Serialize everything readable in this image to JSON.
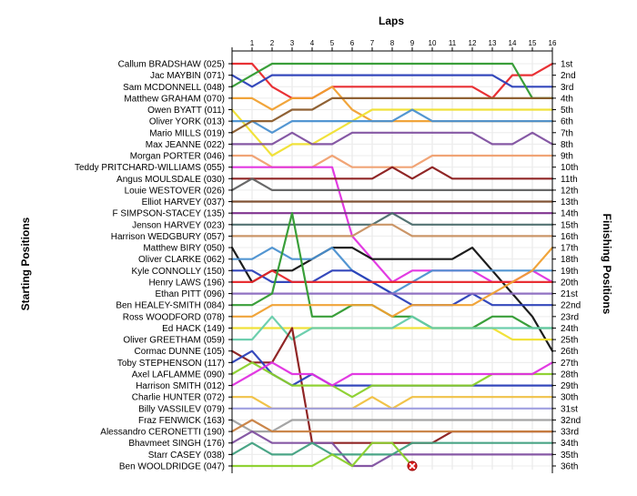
{
  "chart_data": {
    "type": "line",
    "title": "",
    "xlabel": "Laps",
    "ylabel_left": "Starting Positions",
    "ylabel_right": "Finishing Positions",
    "x": [
      0,
      1,
      2,
      3,
      4,
      5,
      6,
      7,
      8,
      9,
      10,
      11,
      12,
      13,
      14,
      15,
      16
    ],
    "x_tick_labels": [
      "1",
      "2",
      "3",
      "4",
      "5",
      "6",
      "7",
      "8",
      "9",
      "10",
      "11",
      "12",
      "13",
      "14",
      "15",
      "16"
    ],
    "ylim": [
      1,
      36
    ],
    "y_inverted": true,
    "grid": true,
    "drivers": [
      "Callum BRADSHAW (025)",
      "Jac MAYBIN (071)",
      "Sam MCDONNELL (048)",
      "Matthew GRAHAM (070)",
      "Owen BYATT (011)",
      "Oliver YORK (013)",
      "Mario MILLS (019)",
      "Max JEANNE (022)",
      "Morgan PORTER (046)",
      "Teddy PRITCHARD-WILLIAMS (055)",
      "Angus  MOULSDALE  (030)",
      "Louie WESTOVER (026)",
      "Elliot HARVEY (037)",
      "F SIMPSON-STACEY (135)",
      "Jenson HARVEY (023)",
      "Harrison WEDGBURY (057)",
      "Matthew BIRY (050)",
      "Oliver CLARKE (062)",
      "Kyle CONNOLLY (150)",
      "Henry LAWS (196)",
      "Ethan PITT (096)",
      "Ben HEALEY-SMITH (084)",
      "Ross WOODFORD (078)",
      "Ed HACK (149)",
      "Oliver GREETHAM (059)",
      "Cormac DUNNE (105)",
      "Toby STEPHENSON (117)",
      "Axel LAFLAMME (090)",
      "Harrison SMITH (012)",
      "Charlie HUNTER (072)",
      "Billy VASSILEV (079)",
      "Fraz FENWICK (163)",
      "Alessandro CERONETTI (190)",
      "Bhavmeet SINGH (176)",
      "Starr CASEY (038)",
      "Ben WOOLDRIDGE (047)"
    ],
    "finishing_labels": [
      "1st",
      "2nd",
      "3rd",
      "4th",
      "5th",
      "6th",
      "7th",
      "8th",
      "9th",
      "10th",
      "11th",
      "12th",
      "13th",
      "14th",
      "15th",
      "16th",
      "17th",
      "18th",
      "19th",
      "20th",
      "21st",
      "22nd",
      "23rd",
      "24th",
      "25th",
      "26th",
      "27th",
      "28th",
      "29th",
      "30th",
      "31st",
      "32nd",
      "33rd",
      "34th",
      "35th",
      "36th"
    ],
    "series": [
      {
        "color": "#e8262a",
        "values": [
          1,
          1,
          3,
          4,
          4,
          3,
          3,
          3,
          3,
          3,
          3,
          3,
          3,
          4,
          2,
          2,
          1
        ]
      },
      {
        "color": "#2a3fb8",
        "values": [
          2,
          3,
          2,
          2,
          2,
          2,
          2,
          2,
          2,
          2,
          2,
          2,
          2,
          2,
          3,
          3,
          3
        ]
      },
      {
        "color": "#2f9a2f",
        "values": [
          3,
          2,
          1,
          1,
          1,
          1,
          1,
          1,
          1,
          1,
          1,
          1,
          1,
          1,
          1,
          4,
          4
        ]
      },
      {
        "color": "#f0a030",
        "values": [
          4,
          4,
          5,
          4,
          4,
          3,
          5,
          6,
          6,
          6,
          6,
          6,
          6,
          6,
          6,
          6,
          6
        ]
      },
      {
        "color": "#f0e030",
        "values": [
          5,
          7,
          9,
          8,
          8,
          7,
          6,
          5,
          5,
          5,
          5,
          5,
          5,
          5,
          5,
          5,
          5
        ]
      },
      {
        "color": "#4a90d0",
        "values": [
          6,
          6,
          7,
          6,
          6,
          6,
          6,
          6,
          6,
          5,
          6,
          6,
          6,
          6,
          6,
          6,
          6
        ]
      },
      {
        "color": "#8a5a2a",
        "values": [
          7,
          6,
          6,
          5,
          5,
          4,
          4,
          4,
          4,
          4,
          4,
          4,
          4,
          4,
          4,
          4,
          4
        ]
      },
      {
        "color": "#8050a0",
        "values": [
          8,
          8,
          8,
          7,
          8,
          8,
          7,
          7,
          7,
          7,
          7,
          7,
          7,
          8,
          8,
          7,
          8
        ]
      },
      {
        "color": "#f0a070",
        "values": [
          9,
          9,
          10,
          10,
          10,
          9,
          10,
          10,
          10,
          10,
          9,
          9,
          9,
          9,
          9,
          9,
          9
        ]
      },
      {
        "color": "#e030e0",
        "values": [
          10,
          10,
          10,
          10,
          10,
          10,
          16,
          18,
          20,
          19,
          19,
          19,
          19,
          20,
          20,
          19,
          20
        ]
      },
      {
        "color": "#8a1a1a",
        "values": [
          11,
          11,
          11,
          11,
          11,
          11,
          11,
          11,
          10,
          11,
          10,
          11,
          11,
          11,
          11,
          11,
          11
        ]
      },
      {
        "color": "#606060",
        "values": [
          12,
          11,
          12,
          12,
          12,
          12,
          12,
          12,
          12,
          12,
          12,
          12,
          12,
          12,
          12,
          12,
          12
        ]
      },
      {
        "color": "#7a4a2a",
        "values": [
          13,
          13,
          13,
          13,
          13,
          13,
          13,
          13,
          13,
          13,
          13,
          13,
          13,
          13,
          13,
          13,
          13
        ]
      },
      {
        "color": "#7a2a8a",
        "values": [
          14,
          14,
          14,
          14,
          14,
          14,
          14,
          14,
          14,
          14,
          14,
          14,
          14,
          14,
          14,
          14,
          14
        ]
      },
      {
        "color": "#4a6a6a",
        "values": [
          15,
          15,
          15,
          15,
          15,
          15,
          15,
          15,
          14,
          15,
          15,
          15,
          15,
          15,
          15,
          15,
          15
        ]
      },
      {
        "color": "#c89060",
        "values": [
          16,
          16,
          16,
          16,
          16,
          16,
          16,
          15,
          15,
          16,
          16,
          16,
          16,
          16,
          16,
          16,
          16
        ]
      },
      {
        "color": "#111111",
        "values": [
          17,
          20,
          19,
          19,
          18,
          17,
          17,
          18,
          18,
          18,
          18,
          18,
          17,
          19,
          21,
          23,
          26
        ]
      },
      {
        "color": "#4a90d0",
        "values": [
          18,
          18,
          17,
          18,
          18,
          17,
          19,
          20,
          21,
          20,
          19,
          19,
          19,
          19,
          19,
          19,
          19
        ]
      },
      {
        "color": "#2a3fb8",
        "values": [
          19,
          19,
          20,
          20,
          20,
          19,
          19,
          20,
          21,
          22,
          22,
          22,
          21,
          22,
          22,
          22,
          22
        ]
      },
      {
        "color": "#e8262a",
        "values": [
          20,
          20,
          19,
          20,
          20,
          20,
          20,
          20,
          20,
          20,
          20,
          20,
          20,
          20,
          20,
          20,
          20
        ]
      },
      {
        "color": "#8a6ac0",
        "values": [
          21,
          21,
          21,
          21,
          21,
          21,
          21,
          21,
          21,
          21,
          21,
          21,
          21,
          21,
          21,
          21,
          21
        ]
      },
      {
        "color": "#2f9a2f",
        "values": [
          22,
          22,
          21,
          14,
          23,
          23,
          22,
          22,
          23,
          23,
          24,
          24,
          24,
          23,
          23,
          24,
          24
        ]
      },
      {
        "color": "#f0a030",
        "values": [
          23,
          23,
          22,
          22,
          22,
          22,
          22,
          22,
          23,
          22,
          22,
          22,
          22,
          21,
          20,
          19,
          17
        ]
      },
      {
        "color": "#f0e030",
        "values": [
          24,
          24,
          24,
          24,
          24,
          24,
          24,
          24,
          24,
          24,
          24,
          24,
          24,
          24,
          25,
          25,
          25
        ]
      },
      {
        "color": "#66ccaa",
        "values": [
          25,
          25,
          23,
          25,
          24,
          24,
          24,
          24,
          24,
          23,
          24,
          24,
          24,
          24,
          24,
          24,
          24
        ]
      },
      {
        "color": "#8a1a1a",
        "values": [
          26,
          27,
          27,
          24,
          34,
          34,
          34,
          34,
          34,
          34,
          34,
          33,
          33,
          33,
          33,
          33,
          33
        ]
      },
      {
        "color": "#2a3fb8",
        "values": [
          27,
          26,
          28,
          29,
          28,
          29,
          29,
          29,
          29,
          29,
          29,
          29,
          29,
          29,
          29,
          29,
          29
        ]
      },
      {
        "color": "#8ad02a",
        "values": [
          28,
          27,
          28,
          29,
          29,
          29,
          30,
          29,
          29,
          29,
          29,
          29,
          29,
          28,
          28,
          28,
          28
        ]
      },
      {
        "color": "#e030e0",
        "values": [
          29,
          28,
          27,
          28,
          28,
          29,
          28,
          28,
          28,
          28,
          28,
          28,
          28,
          28,
          28,
          28,
          27
        ]
      },
      {
        "color": "#f0c040",
        "values": [
          30,
          30,
          31,
          31,
          31,
          31,
          31,
          30,
          31,
          30,
          30,
          30,
          30,
          30,
          30,
          30,
          30
        ]
      },
      {
        "color": "#a0a0e0",
        "values": [
          31,
          31,
          31,
          31,
          31,
          31,
          31,
          31,
          31,
          31,
          31,
          31,
          31,
          31,
          31,
          31,
          31
        ]
      },
      {
        "color": "#a0a0a0",
        "values": [
          32,
          33,
          33,
          32,
          32,
          32,
          32,
          32,
          32,
          32,
          32,
          32,
          32,
          32,
          32,
          32,
          32
        ]
      },
      {
        "color": "#c88040",
        "values": [
          33,
          32,
          33,
          33,
          33,
          33,
          33,
          33,
          33,
          33,
          33,
          33,
          33,
          33,
          33,
          33,
          33
        ]
      },
      {
        "color": "#8050a0",
        "values": [
          34,
          33,
          34,
          34,
          34,
          34,
          36,
          36,
          35,
          35,
          35,
          35,
          35,
          35,
          35,
          35,
          35
        ]
      },
      {
        "color": "#40a080",
        "values": [
          35,
          34,
          35,
          35,
          34,
          35,
          35,
          35,
          35,
          34,
          34,
          34,
          34,
          34,
          34,
          34,
          34
        ]
      },
      {
        "color": "#8ad02a",
        "values": [
          36,
          36,
          36,
          36,
          36,
          35,
          36,
          34,
          34,
          36,
          null,
          null,
          null,
          null,
          null,
          null,
          null
        ]
      }
    ],
    "retirements": [
      {
        "series": 35,
        "lap": 9,
        "position": 36
      }
    ]
  }
}
